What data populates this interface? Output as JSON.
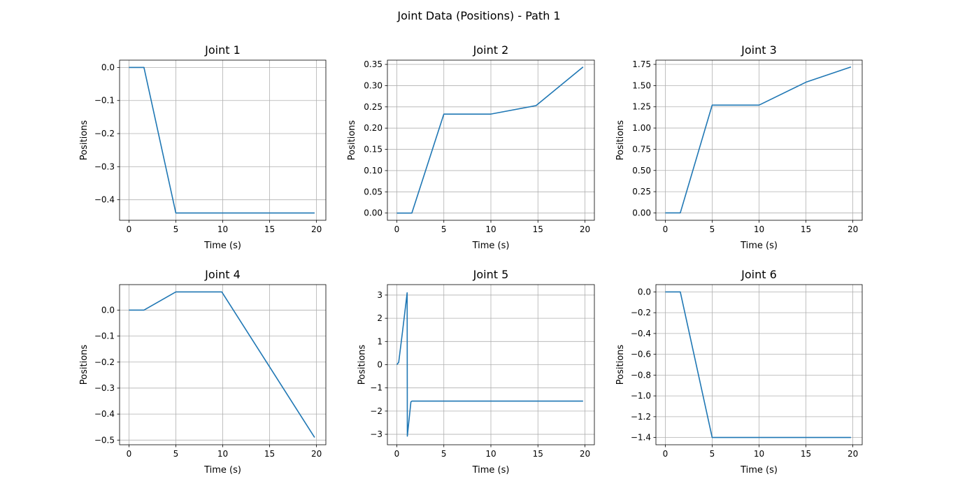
{
  "figure": {
    "suptitle": "Joint Data (Positions) - Path 1",
    "line_color": "#1f77b4",
    "grid_color": "#b0b0b0"
  },
  "chart_data": [
    {
      "type": "line",
      "title": "Joint 1",
      "xlabel": "Time (s)",
      "ylabel": "Positions",
      "grid": true,
      "xlim": [
        -1,
        21
      ],
      "ylim": [
        -0.462,
        0.022
      ],
      "xticks": [
        0,
        5,
        10,
        15,
        20
      ],
      "yticks": [
        0.0,
        -0.1,
        -0.2,
        -0.3,
        -0.4
      ],
      "ytick_labels": [
        "0.0",
        "−0.1",
        "−0.2",
        "−0.3",
        "−0.4"
      ],
      "x": [
        0,
        1.6,
        5.0,
        10,
        15,
        19.8
      ],
      "y": [
        0.0,
        0.0,
        -0.44,
        -0.44,
        -0.44,
        -0.44
      ]
    },
    {
      "type": "line",
      "title": "Joint 2",
      "xlabel": "Time (s)",
      "ylabel": "Positions",
      "grid": true,
      "xlim": [
        -1,
        21
      ],
      "ylim": [
        -0.017,
        0.36
      ],
      "xticks": [
        0,
        5,
        10,
        15,
        20
      ],
      "yticks": [
        0.0,
        0.05,
        0.1,
        0.15,
        0.2,
        0.25,
        0.3,
        0.35
      ],
      "ytick_labels": [
        "0.00",
        "0.05",
        "0.10",
        "0.15",
        "0.20",
        "0.25",
        "0.30",
        "0.35"
      ],
      "x": [
        0,
        1.6,
        5.0,
        10,
        14.8,
        19.8
      ],
      "y": [
        0.0,
        0.0,
        0.233,
        0.233,
        0.253,
        0.344
      ]
    },
    {
      "type": "line",
      "title": "Joint 3",
      "xlabel": "Time (s)",
      "ylabel": "Positions",
      "grid": true,
      "xlim": [
        -1,
        21
      ],
      "ylim": [
        -0.087,
        1.8
      ],
      "xticks": [
        0,
        5,
        10,
        15,
        20
      ],
      "yticks": [
        0.0,
        0.25,
        0.5,
        0.75,
        1.0,
        1.25,
        1.5,
        1.75
      ],
      "ytick_labels": [
        "0.00",
        "0.25",
        "0.50",
        "0.75",
        "1.00",
        "1.25",
        "1.50",
        "1.75"
      ],
      "x": [
        0,
        1.6,
        5.0,
        10,
        15,
        19.8
      ],
      "y": [
        0.0,
        0.0,
        1.27,
        1.27,
        1.54,
        1.72
      ]
    },
    {
      "type": "line",
      "title": "Joint 4",
      "xlabel": "Time (s)",
      "ylabel": "Positions",
      "grid": true,
      "xlim": [
        -1,
        21
      ],
      "ylim": [
        -0.518,
        0.098
      ],
      "xticks": [
        0,
        5,
        10,
        15,
        20
      ],
      "yticks": [
        0.0,
        -0.1,
        -0.2,
        -0.3,
        -0.4,
        -0.5
      ],
      "ytick_labels": [
        "0.0",
        "−0.1",
        "−0.2",
        "−0.3",
        "−0.4",
        "−0.5"
      ],
      "x": [
        0,
        1.6,
        5.0,
        9.9,
        19.8
      ],
      "y": [
        0.0,
        0.0,
        0.07,
        0.07,
        -0.49
      ]
    },
    {
      "type": "line",
      "title": "Joint 5",
      "xlabel": "Time (s)",
      "ylabel": "Positions",
      "grid": true,
      "xlim": [
        -1,
        21
      ],
      "ylim": [
        -3.45,
        3.45
      ],
      "xticks": [
        0,
        5,
        10,
        15,
        20
      ],
      "yticks": [
        3,
        2,
        1,
        0,
        -1,
        -2,
        -3
      ],
      "ytick_labels": [
        "3",
        "2",
        "1",
        "0",
        "−1",
        "−2",
        "−3"
      ],
      "x": [
        0,
        0.2,
        0.6,
        1.1,
        1.12,
        1.5,
        1.6,
        19.8
      ],
      "y": [
        0.0,
        0.1,
        1.4,
        3.1,
        -3.08,
        -1.6,
        -1.57,
        -1.57
      ]
    },
    {
      "type": "line",
      "title": "Joint 6",
      "xlabel": "Time (s)",
      "ylabel": "Positions",
      "grid": true,
      "xlim": [
        -1,
        21
      ],
      "ylim": [
        -1.47,
        0.07
      ],
      "xticks": [
        0,
        5,
        10,
        15,
        20
      ],
      "yticks": [
        0.0,
        -0.2,
        -0.4,
        -0.6,
        -0.8,
        -1.0,
        -1.2,
        -1.4
      ],
      "ytick_labels": [
        "0.0",
        "−0.2",
        "−0.4",
        "−0.6",
        "−0.8",
        "−1.0",
        "−1.2",
        "−1.4"
      ],
      "x": [
        0,
        1.6,
        5.0,
        10,
        15,
        19.8
      ],
      "y": [
        0.0,
        0.0,
        -1.4,
        -1.4,
        -1.4,
        -1.4
      ]
    }
  ]
}
